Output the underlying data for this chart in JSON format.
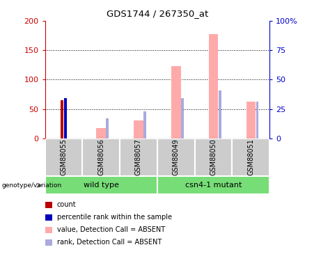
{
  "title": "GDS1744 / 267350_at",
  "samples": [
    "GSM88055",
    "GSM88056",
    "GSM88057",
    "GSM88049",
    "GSM88050",
    "GSM88051"
  ],
  "groups": [
    {
      "name": "wild type",
      "indices": [
        0,
        1,
        2
      ]
    },
    {
      "name": "csn4-1 mutant",
      "indices": [
        3,
        4,
        5
      ]
    }
  ],
  "count_values": [
    65,
    0,
    0,
    0,
    0,
    0
  ],
  "percentile_values": [
    68,
    0,
    0,
    0,
    0,
    0
  ],
  "value_absent": [
    0,
    17,
    30,
    123,
    178,
    63
  ],
  "rank_absent": [
    0,
    34,
    46,
    68,
    82,
    63
  ],
  "ylim_left": [
    0,
    200
  ],
  "ylim_right": [
    0,
    100
  ],
  "yticks_left": [
    0,
    50,
    100,
    150,
    200
  ],
  "yticks_right": [
    0,
    25,
    50,
    75,
    100
  ],
  "yticklabels_right": [
    "0",
    "25",
    "50",
    "75",
    "100%"
  ],
  "colors": {
    "count": "#bb0000",
    "percentile": "#0000bb",
    "value_absent": "#ffaaaa",
    "rank_absent": "#aaaadd",
    "axis_left": "#cc0000",
    "axis_right": "#0000cc",
    "label_bg": "#cccccc",
    "group_bg": "#77dd77"
  },
  "legend_items": [
    {
      "label": "count",
      "color": "#bb0000"
    },
    {
      "label": "percentile rank within the sample",
      "color": "#0000bb"
    },
    {
      "label": "value, Detection Call = ABSENT",
      "color": "#ffaaaa"
    },
    {
      "label": "rank, Detection Call = ABSENT",
      "color": "#aaaadd"
    }
  ],
  "genotype_label": "genotype/variation"
}
